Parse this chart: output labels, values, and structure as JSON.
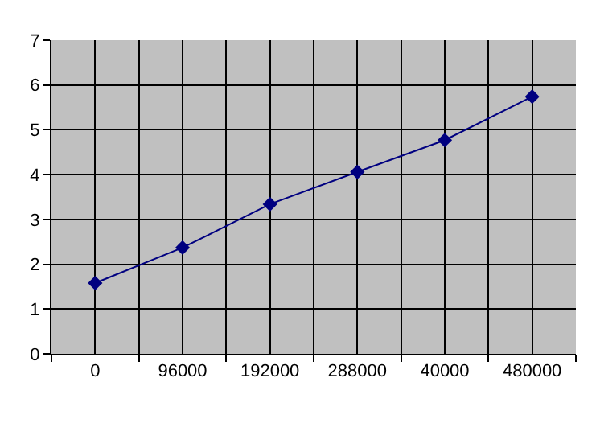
{
  "chart_data": {
    "type": "line",
    "categories": [
      "0",
      "96000",
      "192000",
      "288000",
      "40000",
      "480000"
    ],
    "series": [
      {
        "color": "#000080",
        "values": [
          1.58,
          2.37,
          3.34,
          4.06,
          4.77,
          5.74
        ]
      }
    ],
    "ylim": [
      0,
      7
    ],
    "yticks": [
      0,
      1,
      2,
      3,
      4,
      5,
      6,
      7
    ],
    "grid": true,
    "marker": "diamond",
    "line_style": "solid",
    "legend": false
  }
}
